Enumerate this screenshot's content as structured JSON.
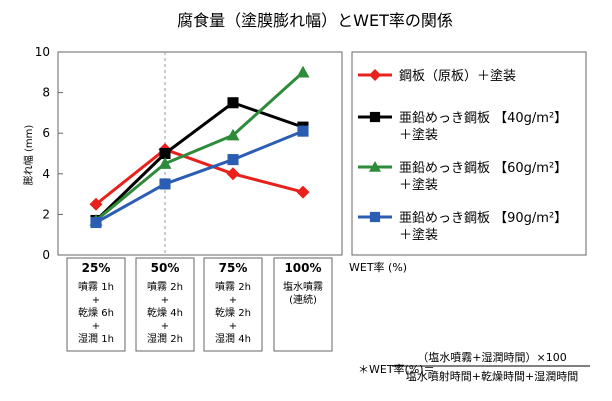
{
  "chart_data": {
    "type": "line",
    "title": "腐食量（塗膜膨れ幅）とWET率の関係",
    "ylabel": "膨れ幅 (mm)",
    "xlabel": "WET率 (%)",
    "ylim": [
      0,
      10
    ],
    "y_ticks": [
      "0",
      "2",
      "4",
      "6",
      "8",
      "10"
    ],
    "categories": [
      "25%",
      "50%",
      "75%",
      "100%"
    ],
    "category_details": [
      [
        "噴霧 1h",
        "+",
        "乾燥 6h",
        "+",
        "湿潤 1h"
      ],
      [
        "噴霧 2h",
        "+",
        "乾燥 4h",
        "+",
        "湿潤 2h"
      ],
      [
        "噴霧 2h",
        "+",
        "乾燥 2h",
        "+",
        "湿潤 4h"
      ],
      [
        "塩水噴霧",
        "(連続)"
      ]
    ],
    "grid": false,
    "legend_position": "right",
    "series": [
      {
        "name": [
          "鋼板（原板）＋塗装"
        ],
        "values": [
          2.5,
          5.2,
          4.0,
          3.1
        ],
        "color": "#e8211c",
        "marker": "diamond"
      },
      {
        "name": [
          "亜鉛めっき鋼板 【40g/m²】",
          "＋塗装"
        ],
        "values": [
          1.7,
          5.0,
          7.5,
          6.3
        ],
        "color": "#000000",
        "marker": "square"
      },
      {
        "name": [
          "亜鉛めっき鋼板 【60g/m²】",
          "＋塗装"
        ],
        "values": [
          1.7,
          4.5,
          5.9,
          9.0
        ],
        "color": "#2e8b3a",
        "marker": "triangle"
      },
      {
        "name": [
          "亜鉛めっき鋼板 【90g/m²】",
          "＋塗装"
        ],
        "values": [
          1.6,
          3.5,
          4.7,
          6.1
        ],
        "color": "#2b5db3",
        "marker": "square"
      }
    ],
    "formula": {
      "lhs": "＊WET率(%)＝",
      "numerator": "（塩水噴霧+湿潤時間）×100",
      "denominator": "塩水噴射時間+乾燥時間+湿潤時間"
    }
  }
}
